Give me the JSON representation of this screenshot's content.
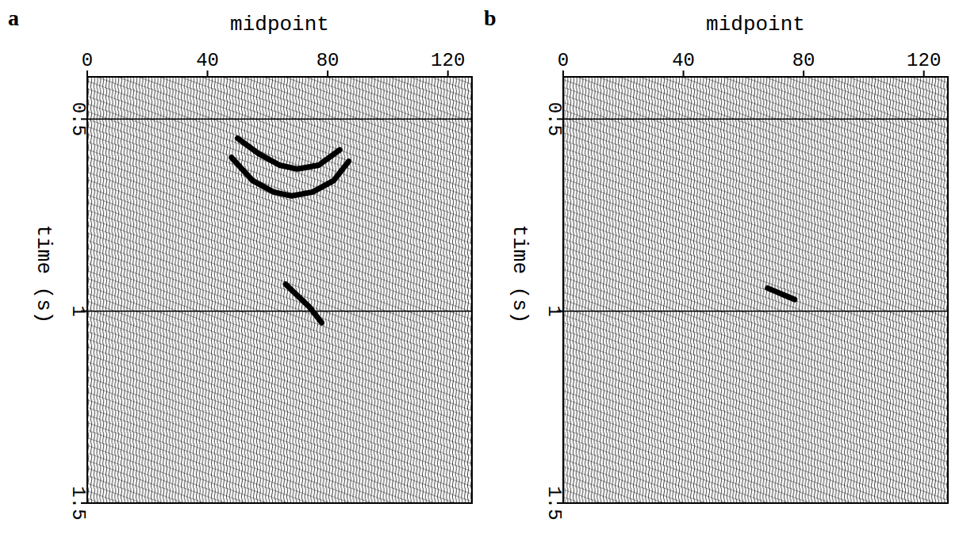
{
  "chart_data": [
    {
      "type": "line",
      "title": "a",
      "x_label": "midpoint",
      "y_label": "time (s)",
      "xlim": [
        0,
        128
      ],
      "xticks": [
        0,
        40,
        80,
        120
      ],
      "ylim": [
        0.39,
        1.5
      ],
      "yticks": [
        0.5,
        1,
        1.5
      ],
      "grid": true,
      "series": [
        {
          "color": "#000000",
          "x": [
            48,
            55,
            62,
            68,
            75,
            82,
            87
          ],
          "values": [
            0.6,
            0.66,
            0.69,
            0.7,
            0.69,
            0.66,
            0.61
          ]
        },
        {
          "color": "#000000",
          "x": [
            50,
            57,
            64,
            70,
            77,
            84
          ],
          "values": [
            0.55,
            0.59,
            0.62,
            0.63,
            0.62,
            0.58
          ]
        },
        {
          "color": "#000000",
          "x": [
            66,
            70,
            74,
            78
          ],
          "values": [
            0.93,
            0.96,
            0.99,
            1.03
          ]
        }
      ]
    },
    {
      "type": "line",
      "title": "b",
      "x_label": "midpoint",
      "y_label": "time (s)",
      "xlim": [
        0,
        128
      ],
      "xticks": [
        0,
        40,
        80,
        120
      ],
      "ylim": [
        0.39,
        1.5
      ],
      "yticks": [
        0.5,
        1,
        1.5
      ],
      "grid": true,
      "series": [
        {
          "color": "#000000",
          "x": [
            68,
            71,
            74,
            77
          ],
          "values": [
            0.94,
            0.95,
            0.96,
            0.97
          ]
        }
      ]
    }
  ]
}
